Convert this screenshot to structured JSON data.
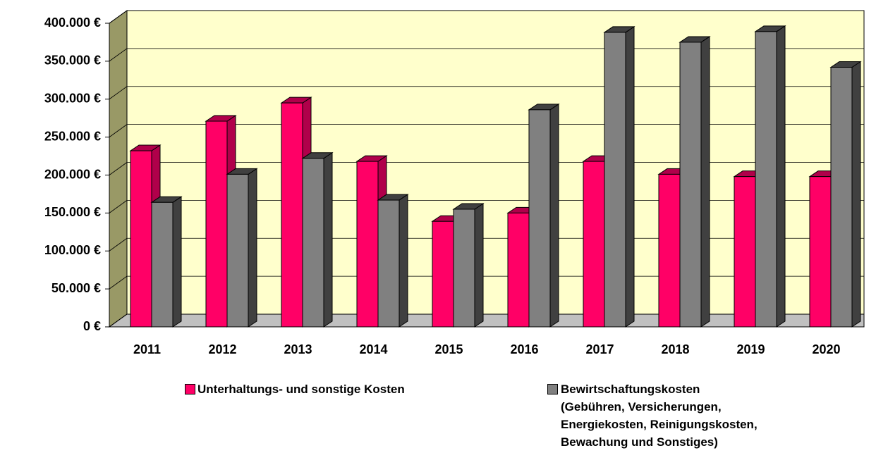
{
  "chart_data": {
    "type": "bar3d",
    "categories": [
      "2011",
      "2012",
      "2013",
      "2014",
      "2015",
      "2016",
      "2017",
      "2018",
      "2019",
      "2020"
    ],
    "series": [
      {
        "name": "Unterhaltungs- und sonstige Kosten",
        "color": "#ff0066",
        "side_color": "#b0004a",
        "values": [
          232000,
          271000,
          295000,
          218000,
          139000,
          150000,
          218000,
          201000,
          198000,
          198000
        ]
      },
      {
        "name": "Bewirtschaftungskosten\n(Gebühren, Versicherungen,\nEnergiekosten, Reinigungskosten,\nBewachung und Sonstiges)",
        "color": "#808080",
        "side_color": "#404040",
        "values": [
          164000,
          201000,
          222000,
          167000,
          155000,
          286000,
          388000,
          375000,
          389000,
          342000
        ]
      }
    ],
    "ylim": [
      0,
      400000
    ],
    "yticks": [
      {
        "value": 0,
        "label": "0 €"
      },
      {
        "value": 50000,
        "label": "50.000 €"
      },
      {
        "value": 100000,
        "label": "100.000 €"
      },
      {
        "value": 150000,
        "label": "150.000 €"
      },
      {
        "value": 200000,
        "label": "200.000 €"
      },
      {
        "value": 250000,
        "label": "250.000 €"
      },
      {
        "value": 300000,
        "label": "300.000 €"
      },
      {
        "value": 350000,
        "label": "350.000 €"
      },
      {
        "value": 400000,
        "label": "400.000 €"
      }
    ],
    "grid": true,
    "wall_color": "#ffffcc",
    "floor_color": "#c0c0c0"
  }
}
